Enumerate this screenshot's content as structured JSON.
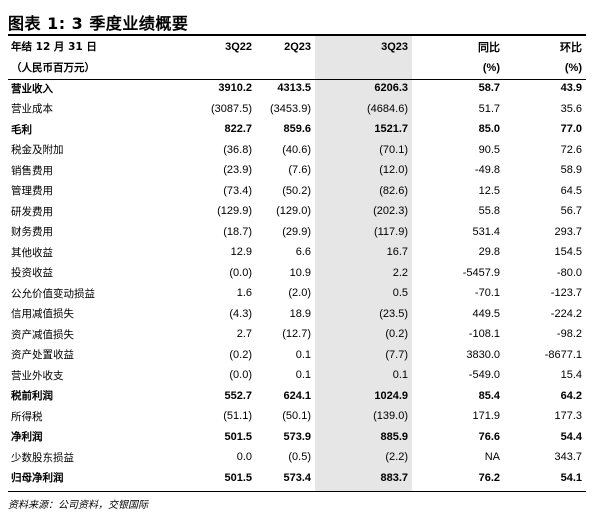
{
  "title": "图表 1: 3 季度业绩概要",
  "header": {
    "row1": [
      "年结 12 月 31 日",
      "3Q22",
      "2Q23",
      "3Q23",
      "同比",
      "环比"
    ],
    "row2": [
      "（人民币百万元）",
      "",
      "",
      "",
      "(%)",
      "(%)"
    ]
  },
  "rows": [
    {
      "label": "营业收入",
      "values": [
        "3910.2",
        "4313.5",
        "6206.3",
        "58.7",
        "43.9"
      ],
      "bold": true
    },
    {
      "label": "营业成本",
      "values": [
        "(3087.5)",
        "(3453.9)",
        "(4684.6)",
        "51.7",
        "35.6"
      ],
      "bold": false
    },
    {
      "label": "毛利",
      "values": [
        "822.7",
        "859.6",
        "1521.7",
        "85.0",
        "77.0"
      ],
      "bold": true
    },
    {
      "label": "税金及附加",
      "values": [
        "(36.8)",
        "(40.6)",
        "(70.1)",
        "90.5",
        "72.6"
      ],
      "bold": false
    },
    {
      "label": "销售费用",
      "values": [
        "(23.9)",
        "(7.6)",
        "(12.0)",
        "-49.8",
        "58.9"
      ],
      "bold": false
    },
    {
      "label": "管理费用",
      "values": [
        "(73.4)",
        "(50.2)",
        "(82.6)",
        "12.5",
        "64.5"
      ],
      "bold": false
    },
    {
      "label": "研发费用",
      "values": [
        "(129.9)",
        "(129.0)",
        "(202.3)",
        "55.8",
        "56.7"
      ],
      "bold": false
    },
    {
      "label": "财务费用",
      "values": [
        "(18.7)",
        "(29.9)",
        "(117.9)",
        "531.4",
        "293.7"
      ],
      "bold": false
    },
    {
      "label": "其他收益",
      "values": [
        "12.9",
        "6.6",
        "16.7",
        "29.8",
        "154.5"
      ],
      "bold": false
    },
    {
      "label": "投资收益",
      "values": [
        "(0.0)",
        "10.9",
        "2.2",
        "-5457.9",
        "-80.0"
      ],
      "bold": false
    },
    {
      "label": "公允价值变动损益",
      "values": [
        "1.6",
        "(2.0)",
        "0.5",
        "-70.1",
        "-123.7"
      ],
      "bold": false
    },
    {
      "label": "信用减值损失",
      "values": [
        "(4.3)",
        "18.9",
        "(23.5)",
        "449.5",
        "-224.2"
      ],
      "bold": false
    },
    {
      "label": "资产减值损失",
      "values": [
        "2.7",
        "(12.7)",
        "(0.2)",
        "-108.1",
        "-98.2"
      ],
      "bold": false
    },
    {
      "label": "资产处置收益",
      "values": [
        "(0.2)",
        "0.1",
        "(7.7)",
        "3830.0",
        "-8677.1"
      ],
      "bold": false
    },
    {
      "label": "营业外收支",
      "values": [
        "(0.0)",
        "0.1",
        "0.1",
        "-549.0",
        "15.4"
      ],
      "bold": false
    },
    {
      "label": "税前利润",
      "values": [
        "552.7",
        "624.1",
        "1024.9",
        "85.4",
        "64.2"
      ],
      "bold": true
    },
    {
      "label": "所得税",
      "values": [
        "(51.1)",
        "(50.1)",
        "(139.0)",
        "171.9",
        "177.3"
      ],
      "bold": false
    },
    {
      "label": "净利润",
      "values": [
        "501.5",
        "573.9",
        "885.9",
        "76.6",
        "54.4"
      ],
      "bold": true
    },
    {
      "label": "少数股东损益",
      "values": [
        "0.0",
        "(0.5)",
        "(2.2)",
        "NA",
        "343.7"
      ],
      "bold": false
    },
    {
      "label": "归母净利润",
      "values": [
        "501.5",
        "573.4",
        "883.7",
        "76.2",
        "54.1"
      ],
      "bold": true
    }
  ],
  "source": "资料来源：公司资料，交银国际"
}
